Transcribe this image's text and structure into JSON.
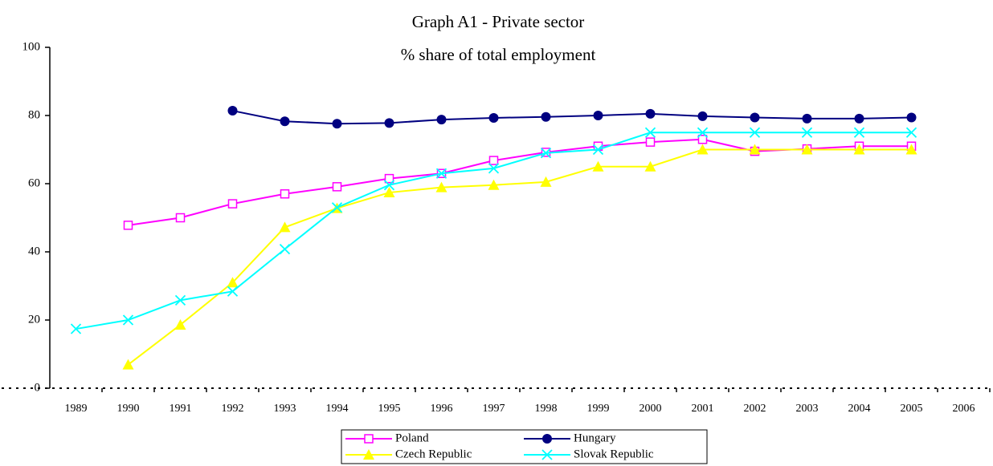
{
  "chart_data": {
    "type": "line",
    "title": "Graph A1  - Private sector",
    "subtitle": "% share of total employment",
    "categories": [
      "1989",
      "1990",
      "1991",
      "1992",
      "1993",
      "1994",
      "1995",
      "1996",
      "1997",
      "1998",
      "1999",
      "2000",
      "2001",
      "2002",
      "2003",
      "2004",
      "2005",
      "2006"
    ],
    "ylim": [
      0,
      100
    ],
    "yticks": [
      0,
      20,
      40,
      60,
      80,
      100
    ],
    "series": [
      {
        "name": "Poland",
        "color": "#ff00ff",
        "marker": "square",
        "values": [
          null,
          47.8,
          50,
          54.1,
          57,
          59.1,
          61.5,
          63,
          66.8,
          69.2,
          71,
          72.2,
          73,
          69.5,
          70.2,
          71,
          71,
          null
        ]
      },
      {
        "name": "Hungary",
        "color": "#000080",
        "marker": "circle",
        "values": [
          null,
          null,
          null,
          81.4,
          78.3,
          77.6,
          77.8,
          78.8,
          79.3,
          79.6,
          80,
          80.5,
          79.8,
          79.4,
          79.1,
          79.1,
          79.4,
          null
        ]
      },
      {
        "name": "Czech Republic",
        "color": "#ffff00",
        "marker": "triangle",
        "values": [
          null,
          6.9,
          18.6,
          31,
          47.2,
          52.8,
          57.4,
          58.9,
          59.6,
          60.5,
          65,
          65,
          70,
          70,
          70,
          70,
          70,
          null
        ]
      },
      {
        "name": "Slovak Republic",
        "color": "#00ffff",
        "marker": "x",
        "values": [
          17.4,
          20,
          25.8,
          28.4,
          40.8,
          53,
          59.6,
          63,
          64.5,
          69,
          70,
          75,
          75,
          75,
          75,
          75,
          75,
          null
        ]
      }
    ]
  }
}
